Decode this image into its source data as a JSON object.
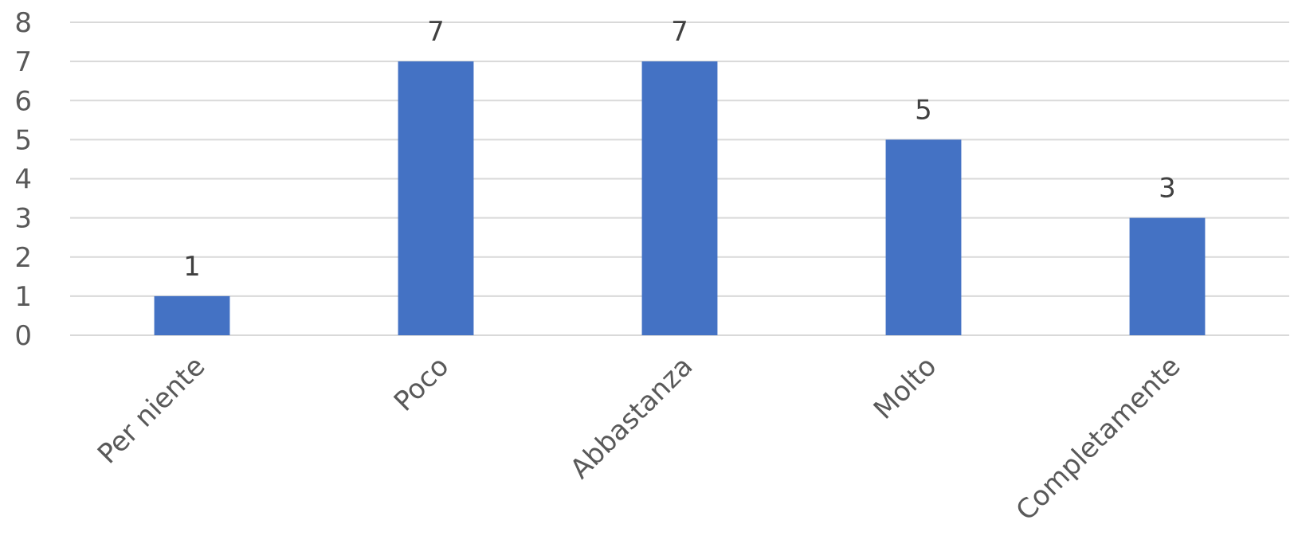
{
  "chart_data": {
    "type": "bar",
    "categories": [
      "Per niente",
      "Poco",
      "Abbastanza",
      "Molto",
      "Completamente"
    ],
    "values": [
      1,
      7,
      7,
      5,
      3
    ],
    "data_labels": [
      "1",
      "7",
      "7",
      "5",
      "3"
    ],
    "y_ticks": [
      "0",
      "1",
      "2",
      "3",
      "4",
      "5",
      "6",
      "7",
      "8"
    ],
    "ylim": [
      0,
      8
    ],
    "grid": true,
    "legend": "none",
    "bar_color": "#4472c4",
    "gridline_color": "#d9d9d9",
    "text_color": "#595959"
  }
}
